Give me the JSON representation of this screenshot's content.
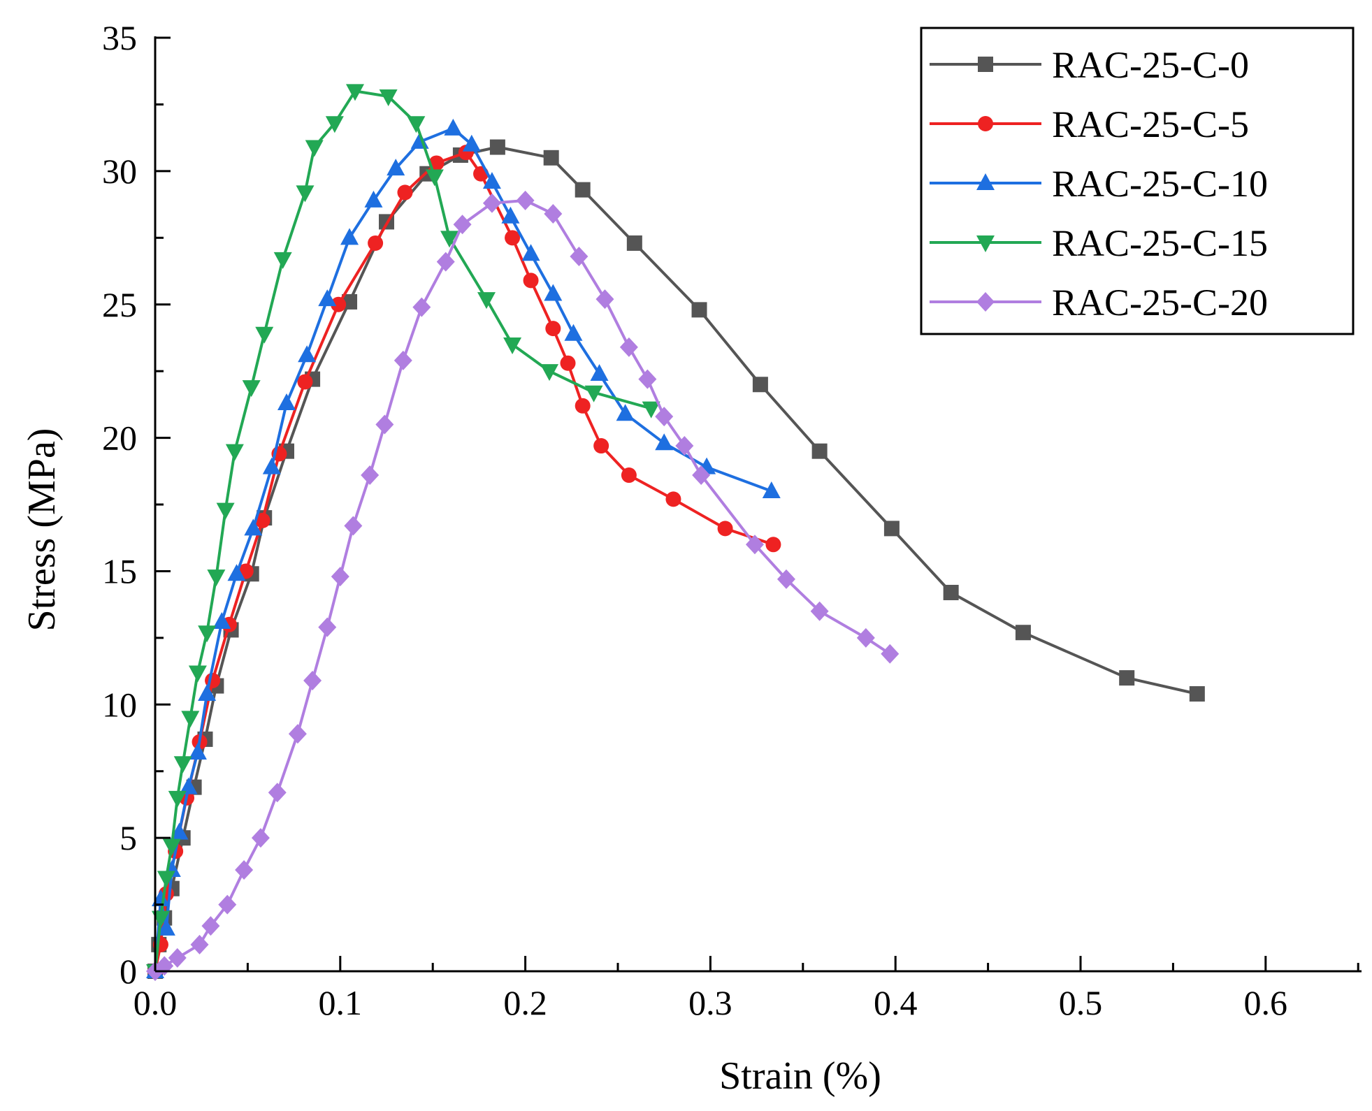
{
  "chart_data": {
    "type": "line",
    "title": "",
    "xlabel": "Strain (%)",
    "ylabel": "Stress (MPa)",
    "xlim": [
      0,
      0.65
    ],
    "ylim": [
      0,
      35
    ],
    "xticks": [
      0.0,
      0.1,
      0.2,
      0.3,
      0.4,
      0.5,
      0.6
    ],
    "xtick_labels": [
      "0.0",
      "0.1",
      "0.2",
      "0.3",
      "0.4",
      "0.5",
      "0.6"
    ],
    "yticks": [
      0,
      5,
      10,
      15,
      20,
      25,
      30,
      35
    ],
    "ytick_labels": [
      "0",
      "5",
      "10",
      "15",
      "20",
      "25",
      "30",
      "35"
    ],
    "grid": false,
    "legend_position": "top-right",
    "series": [
      {
        "name": "RAC-25-C-0",
        "color": "#555555",
        "marker": "square",
        "x": [
          0.0,
          0.002,
          0.005,
          0.009,
          0.015,
          0.021,
          0.027,
          0.033,
          0.041,
          0.052,
          0.059,
          0.071,
          0.085,
          0.105,
          0.125,
          0.147,
          0.165,
          0.185,
          0.214,
          0.231,
          0.259,
          0.294,
          0.327,
          0.359,
          0.398,
          0.43,
          0.469,
          0.525,
          0.563
        ],
        "y": [
          0.0,
          1.0,
          2.0,
          3.1,
          5.0,
          6.9,
          8.7,
          10.7,
          12.8,
          14.9,
          17.0,
          19.5,
          22.2,
          25.1,
          28.1,
          29.9,
          30.6,
          30.9,
          30.5,
          29.3,
          27.3,
          24.8,
          22.0,
          19.5,
          16.6,
          14.2,
          12.7,
          11.0,
          10.4
        ]
      },
      {
        "name": "RAC-25-C-5",
        "color": "#ee2222",
        "marker": "circle",
        "x": [
          0.0,
          0.003,
          0.006,
          0.011,
          0.017,
          0.024,
          0.031,
          0.04,
          0.049,
          0.058,
          0.067,
          0.081,
          0.099,
          0.119,
          0.135,
          0.152,
          0.168,
          0.176,
          0.193,
          0.203,
          0.215,
          0.223,
          0.231,
          0.241,
          0.256,
          0.28,
          0.308,
          0.334
        ],
        "y": [
          0.0,
          1.0,
          2.9,
          4.5,
          6.5,
          8.6,
          10.9,
          13.0,
          15.0,
          16.9,
          19.4,
          22.1,
          25.0,
          27.3,
          29.2,
          30.3,
          30.7,
          29.9,
          27.5,
          25.9,
          24.1,
          22.8,
          21.2,
          19.7,
          18.6,
          17.7,
          16.6,
          16.0
        ]
      },
      {
        "name": "RAC-25-C-10",
        "color": "#1e6fe0",
        "marker": "triangle-up",
        "x": [
          0.0,
          0.003,
          0.006,
          0.009,
          0.013,
          0.018,
          0.023,
          0.028,
          0.036,
          0.044,
          0.053,
          0.063,
          0.071,
          0.082,
          0.093,
          0.105,
          0.118,
          0.13,
          0.143,
          0.161,
          0.171,
          0.182,
          0.192,
          0.203,
          0.215,
          0.226,
          0.24,
          0.254,
          0.275,
          0.298,
          0.333
        ],
        "y": [
          0.0,
          2.7,
          1.6,
          3.8,
          5.2,
          6.9,
          8.2,
          10.4,
          13.1,
          14.9,
          16.6,
          18.9,
          21.3,
          23.1,
          25.2,
          27.5,
          28.9,
          30.1,
          31.1,
          31.6,
          31.0,
          29.6,
          28.3,
          26.9,
          25.4,
          23.9,
          22.4,
          20.9,
          19.8,
          18.9,
          18.0
        ]
      },
      {
        "name": "RAC-25-C-15",
        "color": "#22a854",
        "marker": "triangle-down",
        "x": [
          0.0,
          0.003,
          0.006,
          0.009,
          0.012,
          0.015,
          0.019,
          0.023,
          0.028,
          0.033,
          0.038,
          0.043,
          0.052,
          0.059,
          0.069,
          0.081,
          0.086,
          0.097,
          0.108,
          0.126,
          0.141,
          0.151,
          0.159,
          0.179,
          0.193,
          0.213,
          0.237,
          0.268
        ],
        "y": [
          0.0,
          2.0,
          3.5,
          4.7,
          6.5,
          7.8,
          9.5,
          11.2,
          12.7,
          14.8,
          17.3,
          19.5,
          21.9,
          23.9,
          26.7,
          29.2,
          30.9,
          31.8,
          33.0,
          32.8,
          31.8,
          29.8,
          27.5,
          25.2,
          23.5,
          22.5,
          21.7,
          21.1
        ]
      },
      {
        "name": "RAC-25-C-20",
        "color": "#b07ee0",
        "marker": "diamond",
        "x": [
          0.0,
          0.005,
          0.012,
          0.024,
          0.03,
          0.039,
          0.048,
          0.057,
          0.066,
          0.077,
          0.085,
          0.093,
          0.1,
          0.107,
          0.116,
          0.124,
          0.134,
          0.144,
          0.157,
          0.166,
          0.182,
          0.2,
          0.215,
          0.229,
          0.243,
          0.256,
          0.266,
          0.275,
          0.286,
          0.295,
          0.324,
          0.341,
          0.359,
          0.384,
          0.397
        ],
        "y": [
          0.0,
          0.2,
          0.5,
          1.0,
          1.7,
          2.5,
          3.8,
          5.0,
          6.7,
          8.9,
          10.9,
          12.9,
          14.8,
          16.7,
          18.6,
          20.5,
          22.9,
          24.9,
          26.6,
          28.0,
          28.8,
          28.9,
          28.4,
          26.8,
          25.2,
          23.4,
          22.2,
          20.8,
          19.7,
          18.6,
          16.0,
          14.7,
          13.5,
          12.5,
          11.9
        ]
      }
    ]
  }
}
